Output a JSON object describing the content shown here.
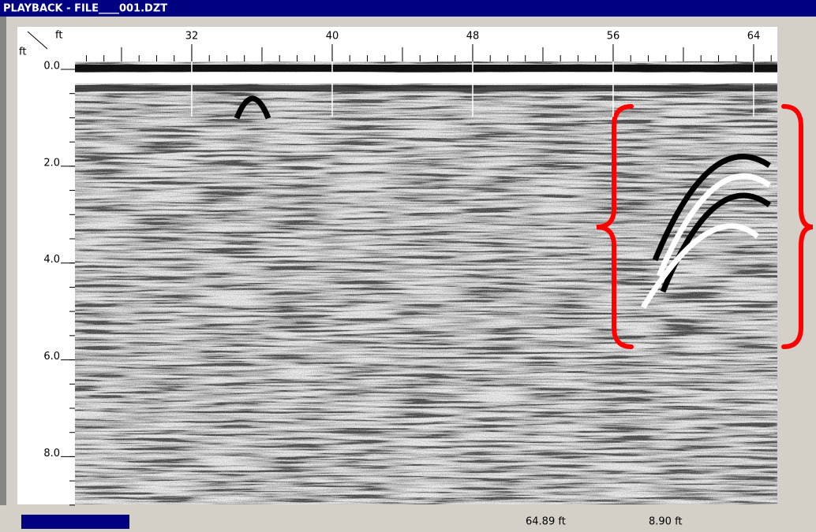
{
  "window": {
    "title": "PLAYBACK - FILE____001.DZT"
  },
  "plot": {
    "x_unit": "ft",
    "y_unit": "ft",
    "xlim": [
      25.35,
      65.35
    ],
    "ylim": [
      0,
      9.1
    ],
    "xticks": [
      32,
      40,
      48,
      56,
      64
    ],
    "yticks": [
      {
        "value": 0,
        "label": "0.0"
      },
      {
        "value": 2,
        "label": "2.0"
      },
      {
        "value": 4,
        "label": "4.0"
      },
      {
        "value": 6,
        "label": "6.0"
      },
      {
        "value": 8,
        "label": "8.0"
      }
    ]
  },
  "status": {
    "distance": "64.89 ft",
    "depth": "8.90 ft"
  }
}
